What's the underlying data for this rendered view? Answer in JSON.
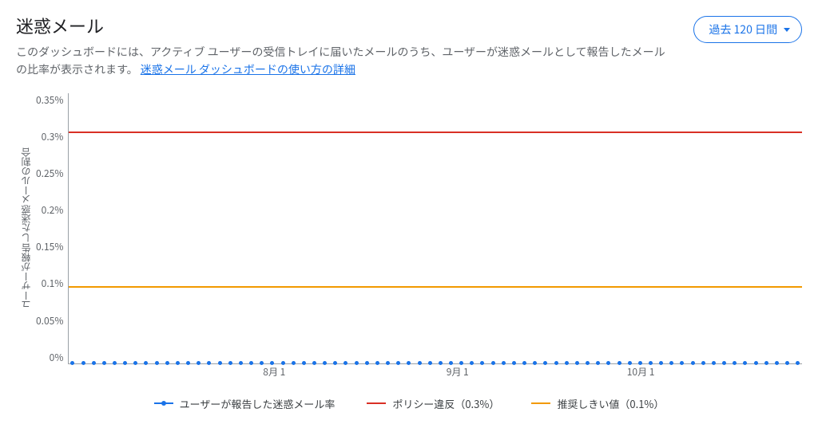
{
  "header": {
    "title": "迷惑メール",
    "description_prefix": "このダッシュボードには、アクティブ ユーザーの受信トレイに届いたメールのうち、ユーザーが迷惑メールとして報告したメールの比率が表示されます。",
    "link_text": "迷惑メール ダッシュボードの使い方の詳細",
    "range_button": "過去 120 日間"
  },
  "chart": {
    "type": "line",
    "y_axis_label": "ユーザーが報告した迷惑メールの割合",
    "y_ticks": [
      "0.35%",
      "0.3%",
      "0.25%",
      "0.2%",
      "0.15%",
      "0.1%",
      "0.05%",
      "0%"
    ],
    "y_max": 0.35,
    "x_ticks": [
      {
        "label": "8月 1",
        "pos_pct": 28
      },
      {
        "label": "9月 1",
        "pos_pct": 53
      },
      {
        "label": "10月 1",
        "pos_pct": 78
      }
    ],
    "thresholds": [
      {
        "key": "policy",
        "value_pct": 0.3,
        "color": "#d93025"
      },
      {
        "key": "recommended",
        "value_pct": 0.1,
        "color": "#f29900"
      }
    ],
    "series_color": "#1a73e8",
    "series_value_pct": 0.0,
    "dot_count": 70,
    "axis_color": "#9aa0a6",
    "tick_text_color": "#5f6368",
    "background": "#ffffff",
    "tick_fontsize": 12
  },
  "legend": {
    "items": [
      {
        "label": "ユーザーが報告した迷惑メール率",
        "style": "linedot",
        "color": "#1a73e8"
      },
      {
        "label": "ポリシー違反（0.3%）",
        "style": "line",
        "color": "#d93025"
      },
      {
        "label": "推奨しきい値（0.1%）",
        "style": "line",
        "color": "#f29900"
      }
    ]
  }
}
